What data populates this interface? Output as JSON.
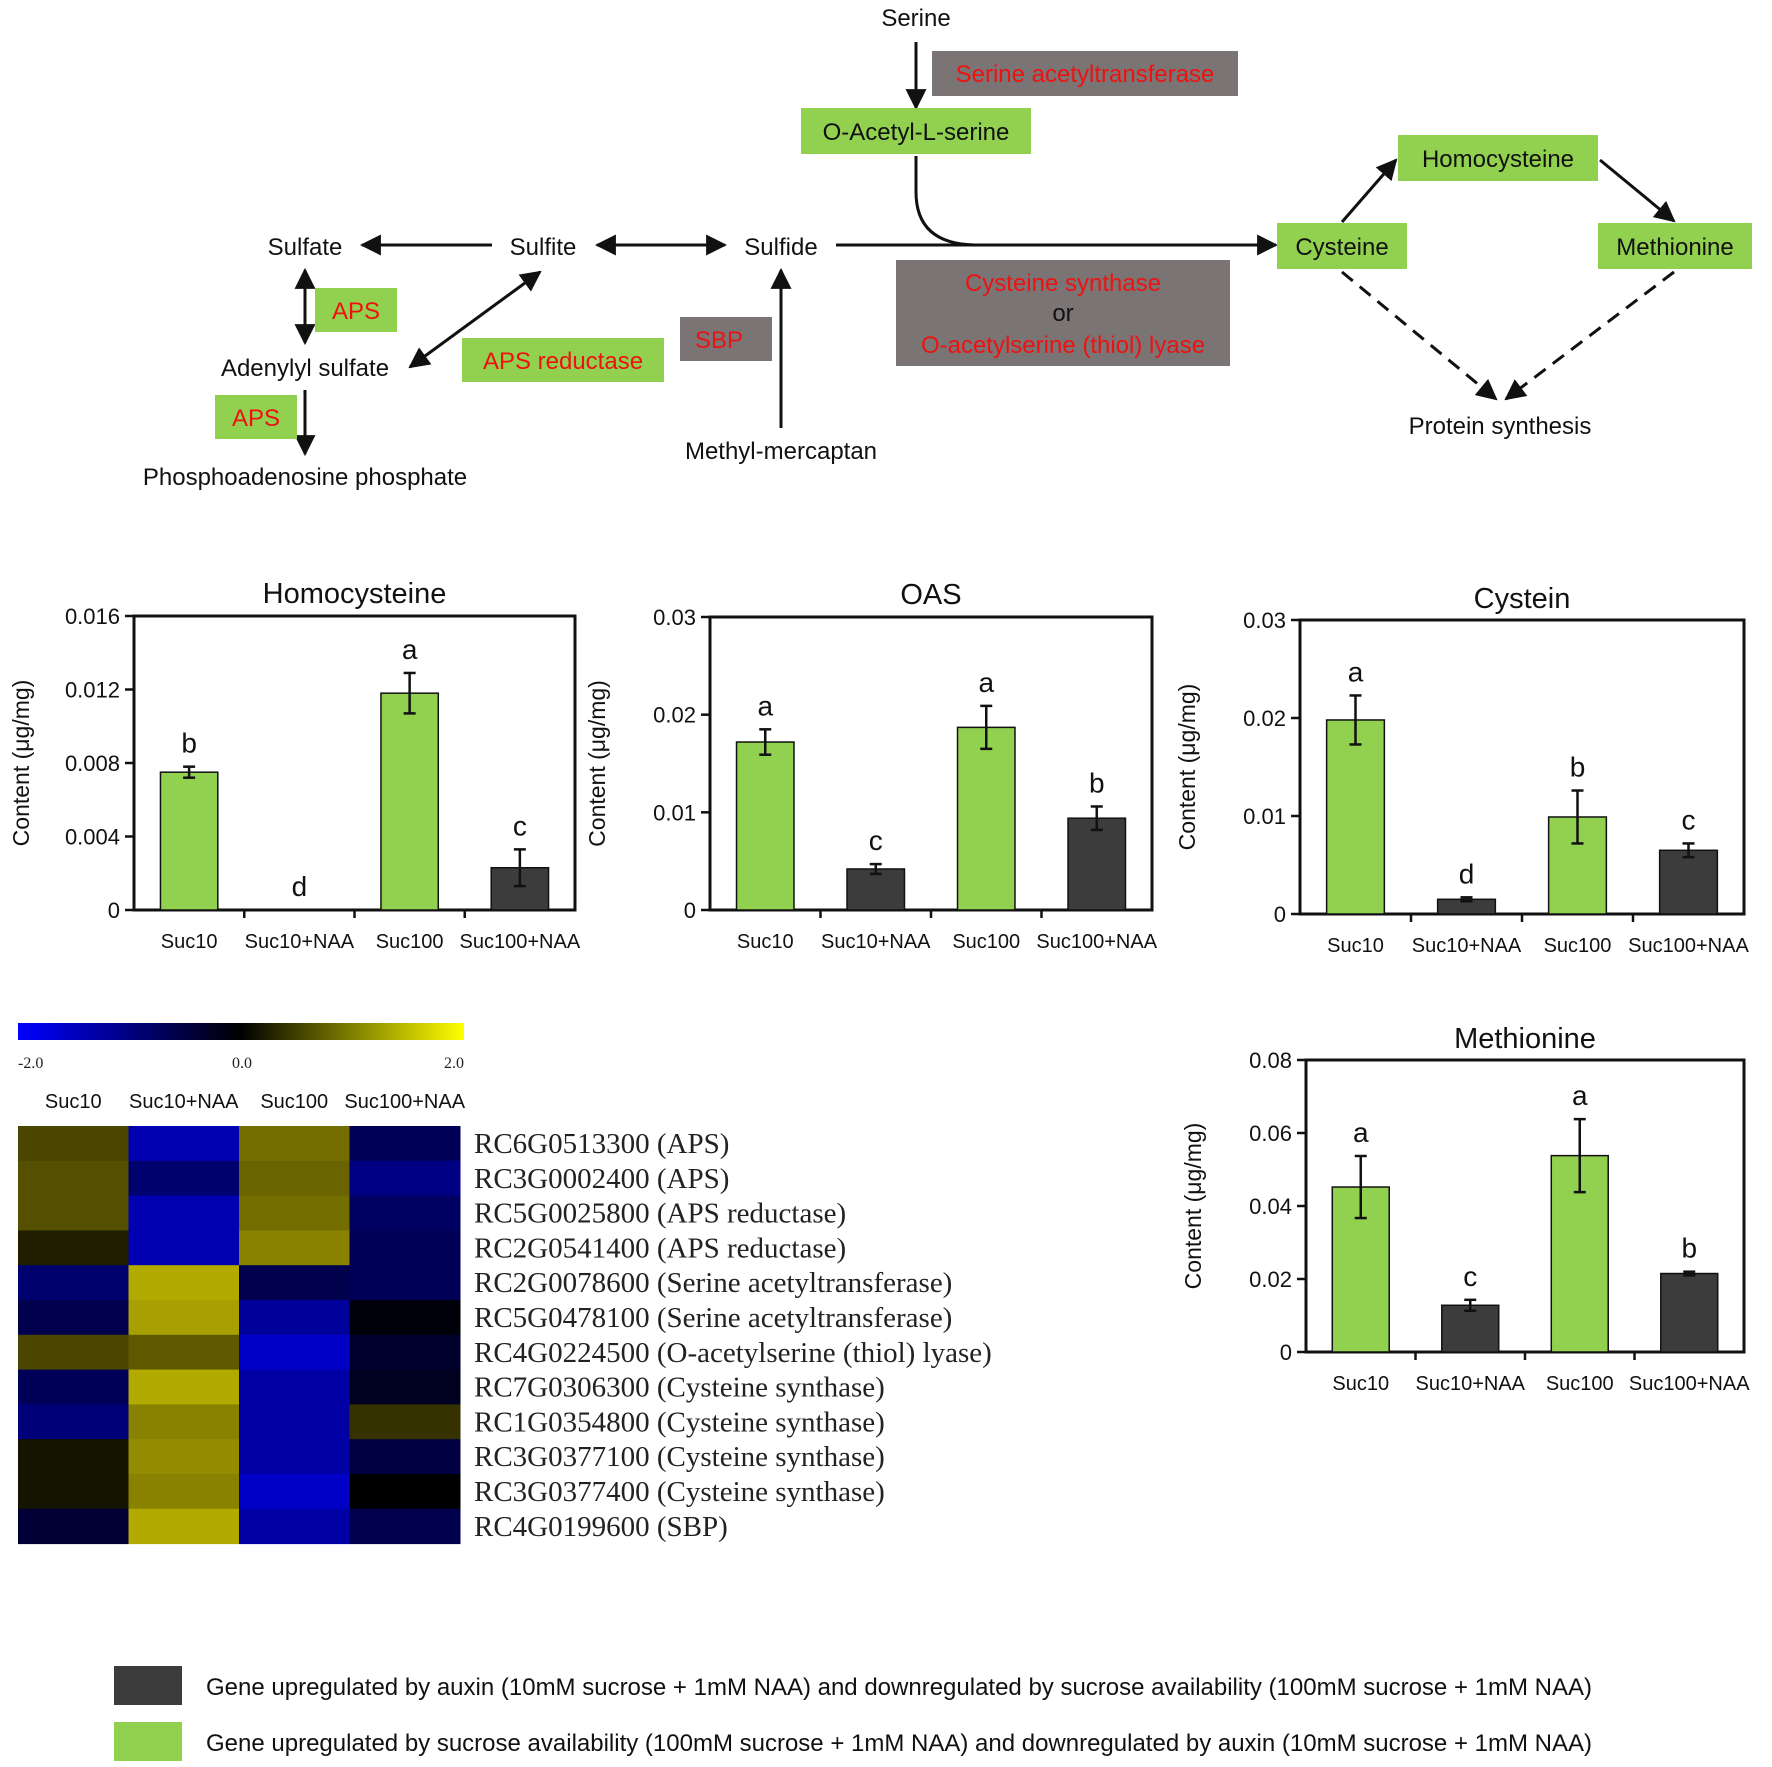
{
  "colors": {
    "green": "#92d050",
    "dark": "#3c3c3c",
    "grey_box": "#7a7574",
    "red_text": "#ee1111",
    "heat_low": "#0000ff",
    "heat_mid": "#000000",
    "heat_high": "#ffff00"
  },
  "pathway": {
    "metabolites": {
      "serine": "Serine",
      "oas": "O-Acetyl-L-serine",
      "sulfate": "Sulfate",
      "sulfite": "Sulfite",
      "sulfide": "Sulfide",
      "adenylyl_sulfate": "Adenylyl sulfate",
      "paps": "Phosphoadenosine phosphate",
      "methyl_mercaptan": "Methyl-mercaptan",
      "cysteine": "Cysteine",
      "homocysteine": "Homocysteine",
      "methionine": "Methionine",
      "protein_synthesis": "Protein synthesis"
    },
    "enzymes": {
      "serine_acetyltransferase": "Serine acetyltransferase",
      "aps_1": "APS",
      "aps_2": "APS",
      "aps_reductase": "APS reductase",
      "sbp": "SBP",
      "cysteine_synthase": "Cysteine synthase",
      "or_word": "or",
      "oas_thiol_lyase": "O-acetylserine (thiol) lyase"
    }
  },
  "chart_data": [
    {
      "type": "bar",
      "title": "Homocysteine",
      "ylabel": "Content (μg/mg)",
      "categories": [
        "Suc10",
        "Suc10+NAA",
        "Suc100",
        "Suc100+NAA"
      ],
      "values": [
        0.0075,
        0.0,
        0.0118,
        0.0023
      ],
      "errors": [
        0.0003,
        0.0,
        0.0011,
        0.001
      ],
      "letters": [
        "b",
        "d",
        "a",
        "c"
      ],
      "bar_colors": [
        "#92d050",
        "#92d050",
        "#92d050",
        "#3c3c3c"
      ],
      "ylim": [
        0,
        0.016
      ],
      "yticks": [
        "0",
        "0.004",
        "0.008",
        "0.012",
        "0.016"
      ],
      "ytick_values": [
        0,
        0.004,
        0.008,
        0.012,
        0.016
      ]
    },
    {
      "type": "bar",
      "title": "OAS",
      "ylabel": "Content (μg/mg)",
      "categories": [
        "Suc10",
        "Suc10+NAA",
        "Suc100",
        "Suc100+NAA"
      ],
      "values": [
        0.0172,
        0.0042,
        0.0187,
        0.0094
      ],
      "errors": [
        0.0013,
        0.0005,
        0.0022,
        0.0012
      ],
      "letters": [
        "a",
        "c",
        "a",
        "b"
      ],
      "bar_colors": [
        "#92d050",
        "#3c3c3c",
        "#92d050",
        "#3c3c3c"
      ],
      "ylim": [
        0,
        0.03
      ],
      "yticks": [
        "0",
        "0.01",
        "0.02",
        "0.03"
      ],
      "ytick_values": [
        0,
        0.01,
        0.02,
        0.03
      ]
    },
    {
      "type": "bar",
      "title": "Cystein",
      "ylabel": "Content (μg/mg)",
      "categories": [
        "Suc10",
        "Suc10+NAA",
        "Suc100",
        "Suc100+NAA"
      ],
      "values": [
        0.0198,
        0.0015,
        0.0099,
        0.0065
      ],
      "errors": [
        0.0025,
        0.0002,
        0.0027,
        0.0007
      ],
      "letters": [
        "a",
        "d",
        "b",
        "c"
      ],
      "bar_colors": [
        "#92d050",
        "#3c3c3c",
        "#92d050",
        "#3c3c3c"
      ],
      "ylim": [
        0,
        0.03
      ],
      "yticks": [
        "0",
        "0.01",
        "0.02",
        "0.03"
      ],
      "ytick_values": [
        0,
        0.01,
        0.02,
        0.03
      ]
    },
    {
      "type": "bar",
      "title": "Methionine",
      "ylabel": "Content (μg/mg)",
      "categories": [
        "Suc10",
        "Suc10+NAA",
        "Suc100",
        "Suc100+NAA"
      ],
      "values": [
        0.0452,
        0.0128,
        0.0538,
        0.0215
      ],
      "errors": [
        0.0085,
        0.0015,
        0.01,
        0.0005
      ],
      "letters": [
        "a",
        "c",
        "a",
        "b"
      ],
      "bar_colors": [
        "#92d050",
        "#3c3c3c",
        "#92d050",
        "#3c3c3c"
      ],
      "ylim": [
        0,
        0.08
      ],
      "yticks": [
        "0",
        "0.02",
        "0.04",
        "0.06",
        "0.08"
      ],
      "ytick_values": [
        0,
        0.02,
        0.04,
        0.06,
        0.08
      ]
    },
    {
      "type": "heatmap",
      "scale_labels": [
        "-2.0",
        "0.0",
        "2.0"
      ],
      "scale_range": [
        -2.0,
        2.0
      ],
      "columns": [
        "Suc10",
        "Suc10+NAA",
        "Suc100",
        "Suc100+NAA"
      ],
      "rows": [
        "RC6G0513300 (APS)",
        "RC3G0002400 (APS)",
        "RC5G0025800 (APS reductase)",
        "RC2G0541400 (APS reductase)",
        "RC2G0078600 (Serine acetyltransferase)",
        "RC5G0478100 (Serine acetyltransferase)",
        "RC4G0224500 (O-acetylserine (thiol) lyase)",
        "RC7G0306300 (Cysteine synthase)",
        "RC1G0354800 (Cysteine synthase)",
        "RC3G0377100 (Cysteine synthase)",
        "RC3G0377400 (Cysteine synthase)",
        "RC4G0199600 (SBP)"
      ],
      "values": [
        [
          0.7,
          -1.6,
          1.1,
          -0.8
        ],
        [
          0.8,
          -1.0,
          1.0,
          -1.2
        ],
        [
          0.8,
          -1.6,
          1.1,
          -0.9
        ],
        [
          0.3,
          -1.6,
          1.3,
          -0.8
        ],
        [
          -1.0,
          1.7,
          -0.7,
          -0.8
        ],
        [
          -0.7,
          1.6,
          -1.4,
          -0.1
        ],
        [
          0.7,
          0.9,
          -1.8,
          -0.4
        ],
        [
          -0.8,
          1.7,
          -1.5,
          -0.3
        ],
        [
          -1.1,
          1.3,
          -1.5,
          0.5
        ],
        [
          0.2,
          1.4,
          -1.5,
          -0.6
        ],
        [
          0.2,
          1.3,
          -1.8,
          0.0
        ],
        [
          -0.5,
          1.7,
          -1.5,
          -0.7
        ]
      ]
    }
  ],
  "legend": {
    "dark_text": "Gene upregulated by auxin (10mM sucrose + 1mM NAA) and downregulated by sucrose availability (100mM sucrose + 1mM NAA)",
    "green_text": "Gene upregulated by sucrose availability (100mM sucrose + 1mM NAA) and downregulated by auxin (10mM sucrose + 1mM NAA)"
  }
}
